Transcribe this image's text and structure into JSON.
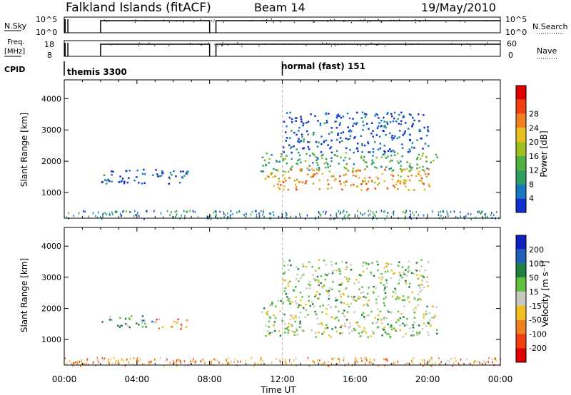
{
  "header": {
    "site": "Falkland Islands (fitACF)",
    "beam": "Beam 14",
    "date": "19/May/2010"
  },
  "strip_labels": {
    "nsky": "N.Sky",
    "nsky_ticks": [
      "10^5",
      "10^0"
    ],
    "nsearch": "N.Search",
    "nsearch_ticks": [
      "10^5",
      "10^0"
    ],
    "freq_line1": "Freq.",
    "freq_line2": "[MHz]",
    "freq_ticks": [
      "18",
      "8"
    ],
    "nave": "Nave",
    "nave_ticks": [
      "60",
      "0"
    ],
    "cpid": "CPID",
    "cpid_modes": [
      {
        "name": "themis 3300",
        "start_hour": 0.0
      },
      {
        "name": "normal (fast) 151",
        "start_hour": 12.0
      }
    ]
  },
  "colors": {
    "power": [
      "#1030d0",
      "#1878c0",
      "#30a060",
      "#50b040",
      "#a0c020",
      "#e8c020",
      "#f08020",
      "#f04010",
      "#e00000"
    ],
    "velocity": [
      "#1020c0",
      "#2060b8",
      "#208040",
      "#60c040",
      "#c8c8c0",
      "#f0c020",
      "#f08020",
      "#f04010",
      "#e00000"
    ]
  },
  "chart_data": [
    {
      "type": "heatmap",
      "name": "power",
      "ylabel": "Slant Range [km]",
      "xlabel": "",
      "xlim_hours": [
        0,
        24
      ],
      "x_ticks": [
        "00:00",
        "04:00",
        "08:00",
        "12:00",
        "16:00",
        "20:00",
        "00:00"
      ],
      "ylim": [
        180,
        4600
      ],
      "y_ticks": [
        1000,
        2000,
        3000,
        4000
      ],
      "colorbar": {
        "label": "Power [dB]",
        "ticks": [
          4,
          8,
          12,
          16,
          20,
          24,
          28
        ]
      },
      "regions": [
        {
          "t0": 2.0,
          "t1": 6.8,
          "r0": 1300,
          "r1": 1800,
          "level": 1
        },
        {
          "t0": 10.8,
          "t1": 20.5,
          "r0": 1700,
          "r1": 2300,
          "level": 3
        },
        {
          "t0": 11.0,
          "t1": 20.3,
          "r0": 1100,
          "r1": 1800,
          "level": 6
        },
        {
          "t0": 12.0,
          "t1": 20.0,
          "r0": 2300,
          "r1": 3600,
          "level": 1
        },
        {
          "t0": 0.0,
          "t1": 24.0,
          "r0": 180,
          "r1": 450,
          "level": 2
        }
      ]
    },
    {
      "type": "heatmap",
      "name": "velocity",
      "ylabel": "Slant Range [km]",
      "xlabel": "Time UT",
      "xlim_hours": [
        0,
        24
      ],
      "x_ticks": [
        "00:00",
        "04:00",
        "08:00",
        "12:00",
        "16:00",
        "20:00",
        "00:00"
      ],
      "ylim": [
        180,
        4600
      ],
      "y_ticks": [
        1000,
        2000,
        3000,
        4000
      ],
      "colorbar": {
        "label": "Velocity [m s⁻¹]",
        "ticks": [
          200,
          100,
          50,
          15,
          -15,
          -50,
          -100,
          -200
        ]
      },
      "regions": [
        {
          "t0": 2.0,
          "t1": 5.0,
          "r0": 1400,
          "r1": 1800,
          "level": 3
        },
        {
          "t0": 5.0,
          "t1": 6.8,
          "r0": 1350,
          "r1": 1700,
          "level": 6
        },
        {
          "t0": 10.8,
          "t1": 20.5,
          "r0": 1100,
          "r1": 2300,
          "level": 4
        },
        {
          "t0": 12.0,
          "t1": 20.0,
          "r0": 2300,
          "r1": 3600,
          "level": 4
        },
        {
          "t0": 0.0,
          "t1": 24.0,
          "r0": 180,
          "r1": 450,
          "level": 6
        }
      ]
    }
  ]
}
